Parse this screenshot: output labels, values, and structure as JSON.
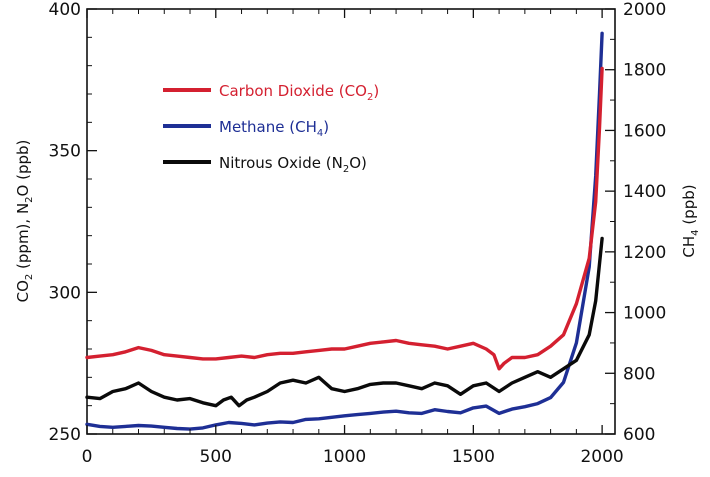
{
  "chart_data": {
    "type": "line",
    "title": "",
    "xlabel": "",
    "x_range": [
      0,
      2050
    ],
    "x_ticks": [
      "0",
      "500",
      "1000",
      "1500",
      "2000"
    ],
    "x_tick_values": [
      0,
      500,
      1000,
      1500,
      2000
    ],
    "left_axis": {
      "label_parts": {
        "a": "CO",
        "a_sub": "2",
        "b": " (ppm), N",
        "b_sub": "2",
        "c": "O (ppb)"
      },
      "range": [
        250,
        400
      ],
      "ticks": [
        "250",
        "300",
        "350",
        "400"
      ],
      "tick_values": [
        250,
        300,
        350,
        400
      ]
    },
    "right_axis": {
      "label_parts": {
        "a": "CH",
        "a_sub": "4",
        "b": " (ppb)"
      },
      "range": [
        600,
        2000
      ],
      "ticks": [
        "600",
        "800",
        "1000",
        "1200",
        "1400",
        "1600",
        "1800",
        "2000"
      ],
      "tick_values": [
        600,
        800,
        1000,
        1200,
        1400,
        1600,
        1800,
        2000
      ]
    },
    "series": [
      {
        "name": "Carbon Dioxide (CO2)",
        "axis": "left",
        "color": "#d42030",
        "legend_parts": {
          "a": "Carbon Dioxide (CO",
          "sub": "2",
          "b": ")"
        },
        "x": [
          0,
          50,
          100,
          150,
          200,
          250,
          300,
          350,
          400,
          450,
          500,
          550,
          600,
          650,
          700,
          750,
          800,
          850,
          900,
          950,
          1000,
          1050,
          1100,
          1150,
          1200,
          1250,
          1300,
          1350,
          1400,
          1450,
          1500,
          1550,
          1580,
          1600,
          1620,
          1650,
          1700,
          1750,
          1800,
          1850,
          1900,
          1950,
          1975,
          1990,
          2000
        ],
        "values": [
          277,
          277.5,
          278,
          279,
          280.5,
          279.5,
          278,
          277.5,
          277,
          276.5,
          276.5,
          277,
          277.5,
          277,
          278,
          278.5,
          278.5,
          279,
          279.5,
          280,
          280,
          281,
          282,
          282.5,
          283,
          282,
          281.5,
          281,
          280,
          281,
          282,
          280,
          278,
          273,
          275,
          277,
          277,
          278,
          281,
          285,
          296,
          312,
          332,
          358,
          379
        ]
      },
      {
        "name": "Methane (CH4)",
        "axis": "right",
        "color": "#1e2f95",
        "legend_parts": {
          "a": "Methane (CH",
          "sub": "4",
          "b": ")"
        },
        "x": [
          0,
          50,
          100,
          150,
          200,
          250,
          300,
          350,
          400,
          450,
          500,
          550,
          600,
          650,
          700,
          750,
          800,
          850,
          900,
          950,
          1000,
          1050,
          1100,
          1150,
          1200,
          1250,
          1300,
          1350,
          1400,
          1450,
          1500,
          1550,
          1600,
          1650,
          1700,
          1750,
          1800,
          1850,
          1900,
          1950,
          1975,
          1990,
          2000
        ],
        "values": [
          632,
          625,
          622,
          625,
          628,
          626,
          622,
          618,
          616,
          620,
          630,
          638,
          635,
          630,
          636,
          640,
          638,
          648,
          650,
          655,
          660,
          664,
          668,
          672,
          675,
          670,
          668,
          680,
          674,
          670,
          686,
          692,
          668,
          682,
          690,
          700,
          720,
          770,
          900,
          1150,
          1450,
          1720,
          1920
        ]
      },
      {
        "name": "Nitrous Oxide (N2O)",
        "axis": "left",
        "color": "#0a0a0a",
        "legend_parts": {
          "a": "Nitrous Oxide (N",
          "sub": "2",
          "b": "O)"
        },
        "x": [
          0,
          50,
          100,
          150,
          200,
          250,
          300,
          350,
          400,
          450,
          500,
          530,
          560,
          590,
          620,
          650,
          700,
          750,
          800,
          850,
          900,
          950,
          1000,
          1050,
          1100,
          1150,
          1200,
          1250,
          1300,
          1350,
          1400,
          1450,
          1500,
          1550,
          1600,
          1650,
          1700,
          1750,
          1800,
          1850,
          1900,
          1950,
          1975,
          2000
        ],
        "values": [
          263,
          262.5,
          265,
          266,
          268,
          265,
          263,
          262,
          262.5,
          261,
          260,
          262,
          263,
          260,
          262,
          263,
          265,
          268,
          269,
          268,
          270,
          266,
          265,
          266,
          267.5,
          268,
          268,
          267,
          266,
          268,
          267,
          264,
          267,
          268,
          265,
          268,
          270,
          272,
          270,
          273,
          276,
          285,
          297,
          319
        ]
      }
    ],
    "legend_position": "upper-left",
    "grid": false
  }
}
